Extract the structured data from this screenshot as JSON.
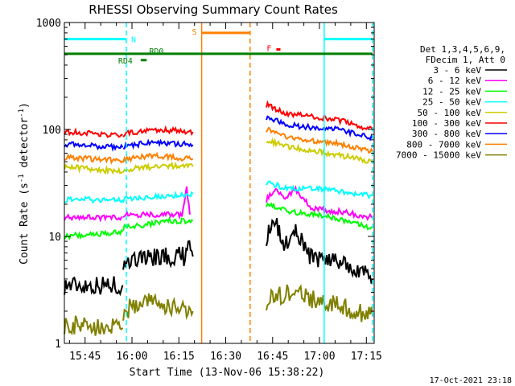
{
  "chart_data": {
    "type": "line",
    "title": "RHESSI Observing Summary Count Rates",
    "xlabel": "Start Time (13-Nov-06 15:38:22)",
    "ylabel_main": "Count Rate (s",
    "ylabel_sup": "-1",
    "ylabel_mid": " detector",
    "ylabel_end": ")",
    "y_scale": "log",
    "ylim": [
      1,
      1000
    ],
    "y_ticks": [
      {
        "value": 1,
        "label": "1"
      },
      {
        "value": 10,
        "label": "10"
      },
      {
        "value": 100,
        "label": "100"
      },
      {
        "value": 1000,
        "label": "1000"
      }
    ],
    "x_range_min": [
      38.37,
      137.5
    ],
    "x_ticks": [
      {
        "value": 45,
        "label": "15:45"
      },
      {
        "value": 60,
        "label": "16:00"
      },
      {
        "value": 75,
        "label": "16:15"
      },
      {
        "value": 90,
        "label": "16:30"
      },
      {
        "value": 105,
        "label": "16:45"
      },
      {
        "value": 120,
        "label": "17:00"
      },
      {
        "value": 135,
        "label": "17:15"
      }
    ],
    "legend_header": [
      "Det 1,3,4,5,6,9,",
      "FDecim 1, Att 0"
    ],
    "series": [
      {
        "name": "3 - 6 keV",
        "color": "#000000",
        "seg1": [
          [
            38.4,
            3.5
          ],
          [
            57.0,
            3.5
          ]
        ],
        "seg2": [
          [
            57.2,
            6
          ],
          [
            72,
            6.5
          ],
          [
            77,
            6.5
          ],
          [
            78,
            10
          ],
          [
            79.5,
            6.5
          ]
        ],
        "seg3": [
          [
            103,
            10
          ],
          [
            106,
            13
          ],
          [
            109,
            8
          ],
          [
            112,
            12
          ],
          [
            115,
            8
          ],
          [
            118,
            6
          ],
          [
            127,
            6
          ],
          [
            137,
            4
          ]
        ]
      },
      {
        "name": "6 - 12 keV",
        "color": "#ff00ff",
        "seg1": [
          [
            38.4,
            15
          ],
          [
            57.0,
            15
          ]
        ],
        "seg2": [
          [
            57.2,
            16
          ],
          [
            72,
            16
          ],
          [
            76,
            16
          ],
          [
            77.5,
            28
          ],
          [
            78.5,
            16
          ]
        ],
        "seg3": [
          [
            103,
            22
          ],
          [
            106,
            28
          ],
          [
            109,
            22
          ],
          [
            112,
            28
          ],
          [
            115,
            22
          ],
          [
            118,
            18
          ],
          [
            127,
            17
          ],
          [
            137,
            15
          ]
        ]
      },
      {
        "name": "12 - 25 keV",
        "color": "#00ff00",
        "seg1": [
          [
            38.4,
            10
          ],
          [
            57.0,
            11
          ]
        ],
        "seg2": [
          [
            57.2,
            12
          ],
          [
            72,
            14
          ],
          [
            79.5,
            14
          ]
        ],
        "seg3": [
          [
            103,
            20
          ],
          [
            110,
            17
          ],
          [
            120,
            16
          ],
          [
            137,
            12
          ]
        ]
      },
      {
        "name": "25 - 50 keV",
        "color": "#00ffff",
        "seg1": [
          [
            38.4,
            22
          ],
          [
            57.0,
            22
          ]
        ],
        "seg2": [
          [
            57.2,
            22
          ],
          [
            70,
            24
          ],
          [
            79.5,
            25
          ]
        ],
        "seg3": [
          [
            103,
            32
          ],
          [
            110,
            28
          ],
          [
            120,
            28
          ],
          [
            137,
            24
          ]
        ]
      },
      {
        "name": "50 - 100 keV",
        "color": "#cccc00",
        "seg1": [
          [
            38.4,
            45
          ],
          [
            57.0,
            40
          ]
        ],
        "seg2": [
          [
            57.2,
            42
          ],
          [
            70,
            46
          ],
          [
            79.5,
            45
          ]
        ],
        "seg3": [
          [
            103,
            80
          ],
          [
            110,
            68
          ],
          [
            120,
            62
          ],
          [
            137,
            50
          ]
        ]
      },
      {
        "name": "100 - 300 keV",
        "color": "#ff0000",
        "seg1": [
          [
            38.4,
            95
          ],
          [
            57.0,
            88
          ]
        ],
        "seg2": [
          [
            57.2,
            90
          ],
          [
            66,
            100
          ],
          [
            79.5,
            95
          ]
        ],
        "seg3": [
          [
            103,
            170
          ],
          [
            110,
            140
          ],
          [
            125,
            125
          ],
          [
            137,
            100
          ]
        ]
      },
      {
        "name": "300 - 800 keV",
        "color": "#0000ff",
        "seg1": [
          [
            38.4,
            73
          ],
          [
            57.0,
            68
          ]
        ],
        "seg2": [
          [
            57.2,
            70
          ],
          [
            66,
            75
          ],
          [
            79.5,
            72
          ]
        ],
        "seg3": [
          [
            103,
            130
          ],
          [
            110,
            110
          ],
          [
            125,
            100
          ],
          [
            137,
            83
          ]
        ]
      },
      {
        "name": "800 - 7000 keV",
        "color": "#ff8000",
        "seg1": [
          [
            38.4,
            55
          ],
          [
            57.0,
            51
          ]
        ],
        "seg2": [
          [
            57.2,
            52
          ],
          [
            66,
            57
          ],
          [
            79.5,
            53
          ]
        ],
        "seg3": [
          [
            103,
            100
          ],
          [
            110,
            84
          ],
          [
            125,
            75
          ],
          [
            137,
            62
          ]
        ]
      },
      {
        "name": "7000 - 15000 keV",
        "color": "#808000",
        "seg1": [
          [
            38.4,
            1.5
          ],
          [
            57.0,
            1.4
          ]
        ],
        "seg2": [
          [
            57.2,
            2
          ],
          [
            65,
            2.5
          ],
          [
            79.5,
            2
          ]
        ],
        "seg3": [
          [
            103,
            2.5
          ],
          [
            110,
            3
          ],
          [
            120,
            2.5
          ],
          [
            137,
            1.8
          ]
        ]
      }
    ],
    "annotations": [
      {
        "label": "N",
        "color": "#00ffff",
        "bars": [
          [
            38.4,
            58.2
          ],
          [
            121.5,
            137
          ]
        ],
        "bar_value": 700
      },
      {
        "label": "S",
        "color": "#ff8000",
        "bars": [
          [
            82.3,
            97.8
          ]
        ],
        "bar_value": 800
      },
      {
        "label": "F",
        "color": "#ff0000",
        "bars": [
          [
            106.2,
            107.5
          ]
        ],
        "bar_value": 560
      },
      {
        "label": "RD0",
        "color": "#008000",
        "bars": [
          [
            38.4,
            137
          ]
        ],
        "bar_value": 510
      },
      {
        "label": "RD4",
        "color": "#008000",
        "bars": [
          [
            62.8,
            64.7
          ]
        ],
        "bar_value": 445
      }
    ],
    "vlines": [
      {
        "x": 58.2,
        "color": "#00ffff",
        "dash": true
      },
      {
        "x": 121.5,
        "color": "#00ffff",
        "dash": false
      },
      {
        "x": 137,
        "color": "#00ffff",
        "dash": true
      },
      {
        "x": 82.3,
        "color": "#ff8000",
        "dash": false
      },
      {
        "x": 97.8,
        "color": "#ff8000",
        "dash": true
      }
    ],
    "footer": "17-Oct-2021 23:18"
  }
}
